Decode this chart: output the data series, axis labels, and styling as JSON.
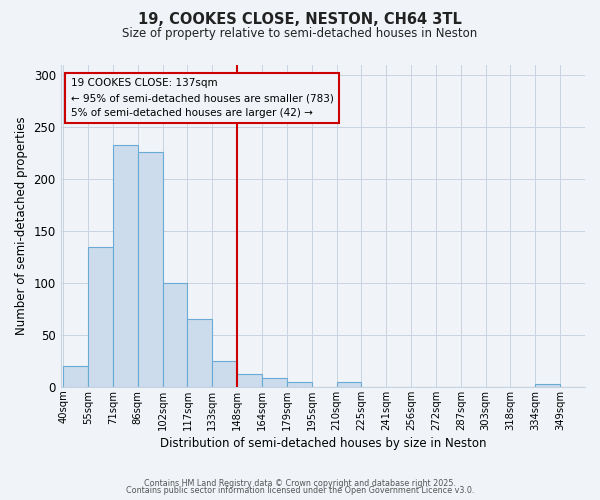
{
  "title": "19, COOKES CLOSE, NESTON, CH64 3TL",
  "subtitle": "Size of property relative to semi-detached houses in Neston",
  "xlabel": "Distribution of semi-detached houses by size in Neston",
  "ylabel": "Number of semi-detached properties",
  "bin_labels": [
    "40sqm",
    "55sqm",
    "71sqm",
    "86sqm",
    "102sqm",
    "117sqm",
    "133sqm",
    "148sqm",
    "164sqm",
    "179sqm",
    "195sqm",
    "210sqm",
    "225sqm",
    "241sqm",
    "256sqm",
    "272sqm",
    "287sqm",
    "303sqm",
    "318sqm",
    "334sqm",
    "349sqm"
  ],
  "bin_heights": [
    20,
    135,
    233,
    226,
    100,
    65,
    25,
    12,
    9,
    5,
    0,
    5,
    0,
    0,
    0,
    0,
    0,
    0,
    0,
    3,
    0
  ],
  "bar_color": "#ccdcec",
  "bar_edge_color": "#6aaad4",
  "vline_x_idx": 7,
  "vline_color": "#cc0000",
  "annotation_title": "19 COOKES CLOSE: 137sqm",
  "annotation_line1": "← 95% of semi-detached houses are smaller (783)",
  "annotation_line2": "5% of semi-detached houses are larger (42) →",
  "ylim": [
    0,
    310
  ],
  "yticks": [
    0,
    50,
    100,
    150,
    200,
    250,
    300
  ],
  "footer1": "Contains HM Land Registry data © Crown copyright and database right 2025.",
  "footer2": "Contains public sector information licensed under the Open Government Licence v3.0.",
  "bg_color": "#f0f4f8",
  "grid_color": "#c8d4e0"
}
